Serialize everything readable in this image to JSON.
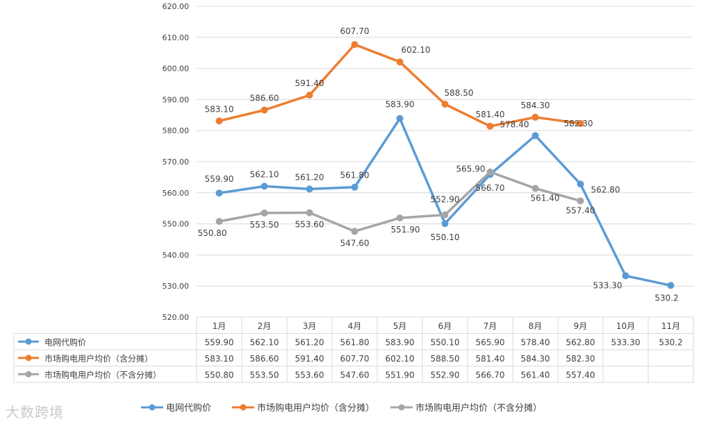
{
  "chart_data": {
    "type": "line",
    "categories": [
      "1月",
      "2月",
      "3月",
      "4月",
      "5月",
      "6月",
      "7月",
      "8月",
      "9月",
      "10月",
      "11月"
    ],
    "ylim": [
      520,
      620
    ],
    "yticks": [
      "520.00",
      "530.00",
      "540.00",
      "550.00",
      "560.00",
      "570.00",
      "580.00",
      "590.00",
      "600.00",
      "610.00",
      "620.00"
    ],
    "series": [
      {
        "name": "电网代购价",
        "color": "#5b9bd5",
        "values": [
          559.9,
          562.1,
          561.2,
          561.8,
          583.9,
          550.1,
          565.9,
          578.4,
          562.8,
          533.3,
          530.2
        ],
        "labels": [
          "559.90",
          "562.10",
          "561.20",
          "561.80",
          "583.90",
          "550.10",
          "565.90",
          "578.40",
          "562.80",
          "533.30",
          "530.2"
        ]
      },
      {
        "name": "市场购电用户均价（含分摊）",
        "color": "#ed7d31",
        "values": [
          583.1,
          586.6,
          591.4,
          607.7,
          602.1,
          588.5,
          581.4,
          584.3,
          582.3,
          null,
          null
        ],
        "labels": [
          "583.10",
          "586.60",
          "591.40",
          "607.70",
          "602.10",
          "588.50",
          "581.40",
          "584.30",
          "582.30",
          "",
          ""
        ]
      },
      {
        "name": "市场购电用户均价（不含分摊）",
        "color": "#a5a5a5",
        "values": [
          550.8,
          553.5,
          553.6,
          547.6,
          551.9,
          552.9,
          566.7,
          561.4,
          557.4,
          null,
          null
        ],
        "labels": [
          "550.80",
          "553.50",
          "553.60",
          "547.60",
          "551.90",
          "552.90",
          "566.70",
          "561.40",
          "557.40",
          "",
          ""
        ]
      }
    ],
    "grid": true,
    "legend": "bottom",
    "data_table": true
  },
  "watermark": "大数跨境"
}
